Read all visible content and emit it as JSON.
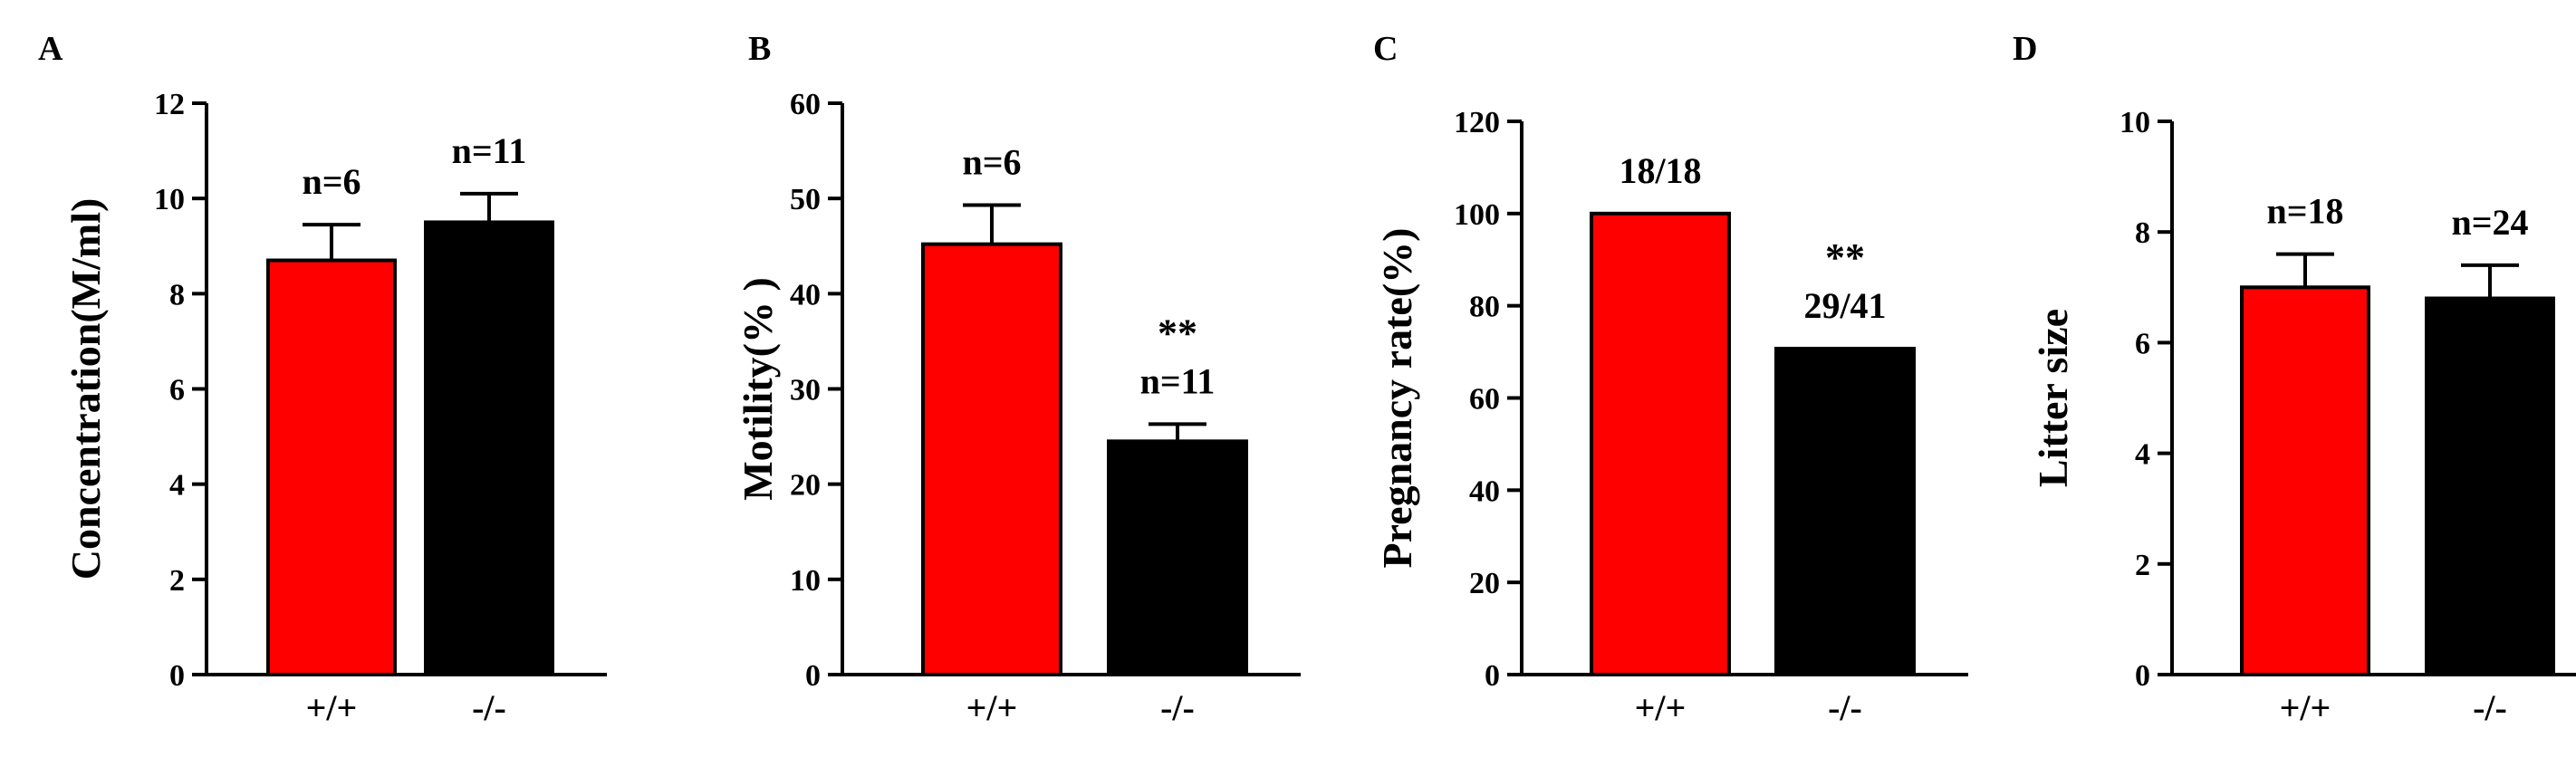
{
  "chart_data": [
    {
      "panel": "A",
      "type": "bar",
      "ylabel": "Concentration(M/ml)",
      "ylim": [
        0,
        12
      ],
      "yticks": [
        0,
        2,
        4,
        6,
        8,
        10,
        12
      ],
      "categories": [
        "+/+",
        "-/-"
      ],
      "values": [
        8.7,
        9.5
      ],
      "errors": [
        0.75,
        0.6
      ],
      "bar_labels": [
        "n=6",
        "n=11"
      ],
      "significance": [
        "",
        ""
      ],
      "colors": [
        "#ff0000",
        "#000000"
      ]
    },
    {
      "panel": "B",
      "type": "bar",
      "ylabel": "Motility(% )",
      "ylim": [
        0,
        60
      ],
      "yticks": [
        0,
        10,
        20,
        30,
        40,
        50,
        60
      ],
      "categories": [
        "+/+",
        "-/-"
      ],
      "values": [
        45.2,
        24.5
      ],
      "errors": [
        4.1,
        1.8
      ],
      "bar_labels": [
        "n=6",
        "n=11"
      ],
      "significance": [
        "",
        "**"
      ],
      "colors": [
        "#ff0000",
        "#000000"
      ]
    },
    {
      "panel": "C",
      "type": "bar",
      "ylabel": "Pregnancy rate(%)",
      "ylim": [
        0,
        120
      ],
      "yticks": [
        0,
        20,
        40,
        60,
        80,
        100,
        120
      ],
      "categories": [
        "+/+",
        "-/-"
      ],
      "values": [
        100,
        70.7
      ],
      "errors": [
        0,
        0
      ],
      "bar_labels": [
        "18/18",
        "29/41"
      ],
      "significance": [
        "",
        "**"
      ],
      "colors": [
        "#ff0000",
        "#000000"
      ]
    },
    {
      "panel": "D",
      "type": "bar",
      "ylabel": "Litter size",
      "ylim": [
        0,
        10
      ],
      "yticks": [
        0,
        2,
        4,
        6,
        8,
        10
      ],
      "categories": [
        "+/+",
        "-/-"
      ],
      "values": [
        7.0,
        6.8
      ],
      "errors": [
        0.6,
        0.6
      ],
      "bar_labels": [
        "n=18",
        "n=24"
      ],
      "significance": [
        "",
        ""
      ],
      "colors": [
        "#ff0000",
        "#000000"
      ]
    }
  ]
}
